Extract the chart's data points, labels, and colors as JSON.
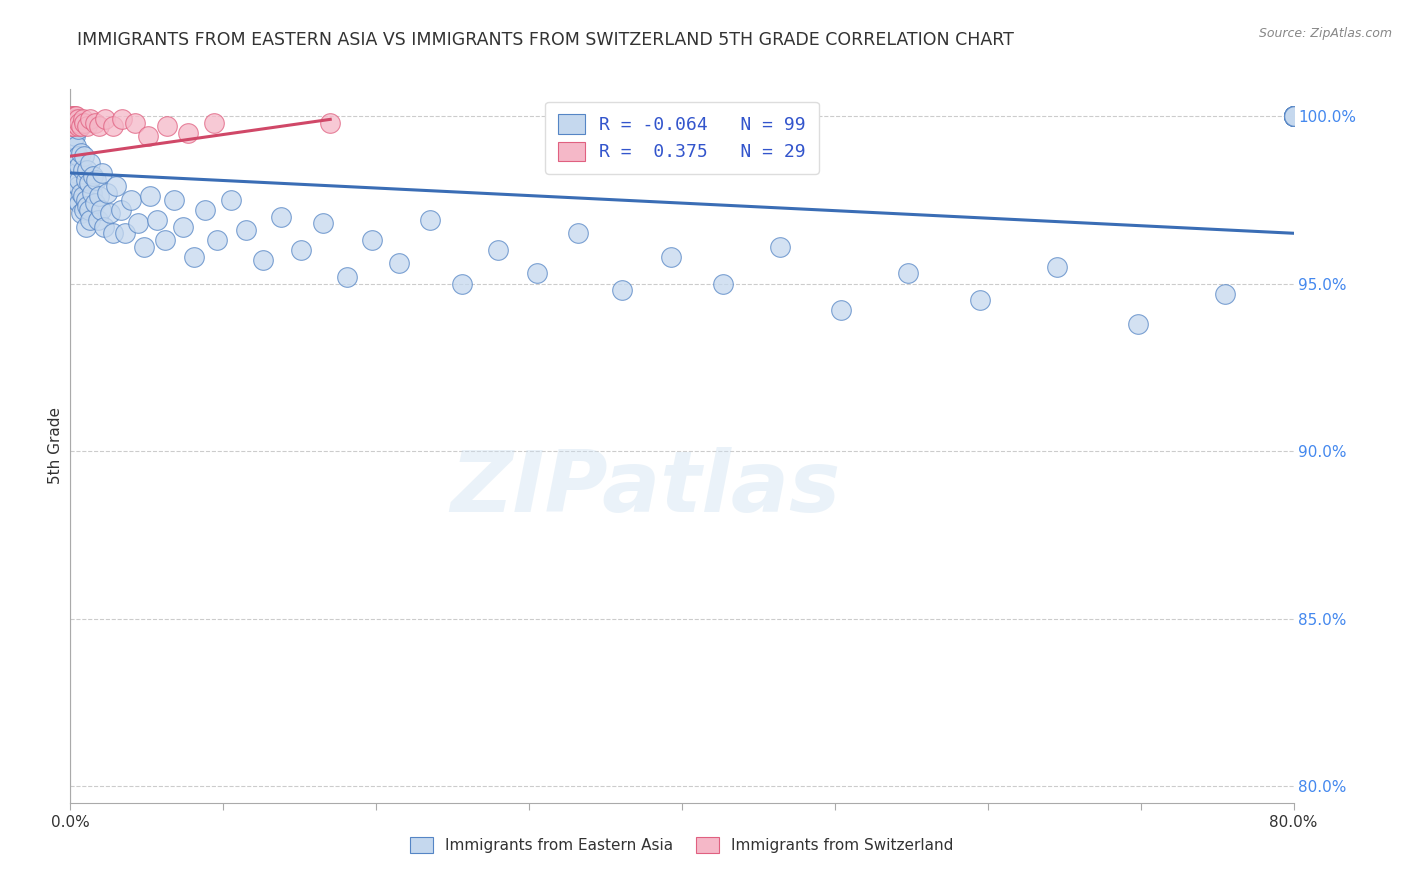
{
  "title": "IMMIGRANTS FROM EASTERN ASIA VS IMMIGRANTS FROM SWITZERLAND 5TH GRADE CORRELATION CHART",
  "source": "Source: ZipAtlas.com",
  "ylabel": "5th Grade",
  "xlim": [
    0.0,
    0.8
  ],
  "ylim": [
    0.795,
    1.008
  ],
  "x_ticks": [
    0.0,
    0.1,
    0.2,
    0.3,
    0.4,
    0.5,
    0.6,
    0.7,
    0.8
  ],
  "x_tick_labels": [
    "0.0%",
    "",
    "",
    "",
    "",
    "",
    "",
    "",
    "80.0%"
  ],
  "y_ticks": [
    0.8,
    0.85,
    0.9,
    0.95,
    1.0
  ],
  "y_tick_labels": [
    "80.0%",
    "85.0%",
    "90.0%",
    "95.0%",
    "100.0%"
  ],
  "blue_R": "-0.064",
  "blue_N": "99",
  "pink_R": "0.375",
  "pink_N": "29",
  "blue_fill": "#c5d8ee",
  "pink_fill": "#f5b8c8",
  "blue_edge": "#5585c5",
  "pink_edge": "#e06080",
  "blue_line": "#3a6db5",
  "pink_line": "#d04868",
  "watermark": "ZIPatlas",
  "blue_x": [
    0.001,
    0.001,
    0.002,
    0.002,
    0.002,
    0.003,
    0.003,
    0.003,
    0.004,
    0.004,
    0.004,
    0.005,
    0.005,
    0.005,
    0.006,
    0.006,
    0.006,
    0.007,
    0.007,
    0.007,
    0.008,
    0.008,
    0.009,
    0.009,
    0.01,
    0.01,
    0.01,
    0.011,
    0.011,
    0.012,
    0.012,
    0.013,
    0.013,
    0.014,
    0.015,
    0.016,
    0.017,
    0.018,
    0.019,
    0.02,
    0.021,
    0.022,
    0.024,
    0.026,
    0.028,
    0.03,
    0.033,
    0.036,
    0.04,
    0.044,
    0.048,
    0.052,
    0.057,
    0.062,
    0.068,
    0.074,
    0.081,
    0.088,
    0.096,
    0.105,
    0.115,
    0.126,
    0.138,
    0.151,
    0.165,
    0.181,
    0.197,
    0.215,
    0.235,
    0.256,
    0.28,
    0.305,
    0.332,
    0.361,
    0.393,
    0.427,
    0.464,
    0.504,
    0.548,
    0.595,
    0.645,
    0.698,
    0.755,
    0.8,
    0.8,
    0.8,
    0.8,
    0.8,
    0.8,
    0.8,
    0.8,
    0.8,
    0.8,
    0.8,
    0.8,
    0.8,
    0.8,
    0.8,
    0.8
  ],
  "blue_y": [
    0.996,
    0.998,
    0.982,
    0.993,
    0.999,
    0.987,
    0.994,
    0.978,
    0.991,
    0.983,
    0.975,
    0.988,
    0.979,
    0.996,
    0.981,
    0.974,
    0.985,
    0.977,
    0.989,
    0.971,
    0.984,
    0.976,
    0.988,
    0.972,
    0.981,
    0.975,
    0.967,
    0.984,
    0.973,
    0.98,
    0.972,
    0.986,
    0.969,
    0.977,
    0.982,
    0.974,
    0.981,
    0.969,
    0.976,
    0.972,
    0.983,
    0.967,
    0.977,
    0.971,
    0.965,
    0.979,
    0.972,
    0.965,
    0.975,
    0.968,
    0.961,
    0.976,
    0.969,
    0.963,
    0.975,
    0.967,
    0.958,
    0.972,
    0.963,
    0.975,
    0.966,
    0.957,
    0.97,
    0.96,
    0.968,
    0.952,
    0.963,
    0.956,
    0.969,
    0.95,
    0.96,
    0.953,
    0.965,
    0.948,
    0.958,
    0.95,
    0.961,
    0.942,
    0.953,
    0.945,
    0.955,
    0.938,
    0.947,
    1.0,
    1.0,
    1.0,
    1.0,
    1.0,
    1.0,
    1.0,
    1.0,
    1.0,
    1.0,
    1.0,
    1.0,
    1.0,
    1.0,
    1.0,
    1.0
  ],
  "pink_x": [
    0.001,
    0.001,
    0.001,
    0.002,
    0.002,
    0.002,
    0.003,
    0.003,
    0.004,
    0.004,
    0.005,
    0.005,
    0.006,
    0.007,
    0.008,
    0.009,
    0.011,
    0.013,
    0.016,
    0.019,
    0.023,
    0.028,
    0.034,
    0.042,
    0.051,
    0.063,
    0.077,
    0.094,
    0.17
  ],
  "pink_y": [
    0.998,
    1.0,
    0.997,
    0.999,
    1.0,
    0.997,
    0.998,
    1.0,
    0.999,
    1.0,
    0.997,
    0.999,
    0.998,
    0.997,
    0.999,
    0.998,
    0.997,
    0.999,
    0.998,
    0.997,
    0.999,
    0.997,
    0.999,
    0.998,
    0.994,
    0.997,
    0.995,
    0.998,
    0.998
  ],
  "blue_trend_x0": 0.0,
  "blue_trend_x1": 0.8,
  "blue_trend_y0": 0.983,
  "blue_trend_y1": 0.965,
  "pink_trend_x0": 0.0,
  "pink_trend_x1": 0.17,
  "pink_trend_y0": 0.988,
  "pink_trend_y1": 0.999
}
